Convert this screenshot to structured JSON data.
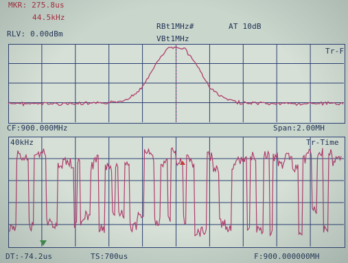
{
  "marker": {
    "time": "MKR: 275.8us",
    "freq": "44.5kHz"
  },
  "top_panel": {
    "ref_level": "RLV: 0.00dBm",
    "rbw": "RBt1MHz#",
    "vbw": "VBt1MHz",
    "attenuation": "AT 10dB",
    "trace_label": "Tr-F"
  },
  "mid_bar": {
    "center_freq": "CF:900.000MHz",
    "span": "Span:2.00MH"
  },
  "bottom_panel": {
    "scale_label": "40kHz",
    "trace_label": "Tr-Time"
  },
  "footer": {
    "delta_time": "DT:-74.2us",
    "sweep_time": "TS:700us",
    "frequency": "F:900.000000MH"
  },
  "colors": {
    "screen_bg": "#c9d6cc",
    "grid": "#2a3d73",
    "trace": "#b03c6c",
    "label_text": "#1d2e52",
    "marker_text": "#b0273a"
  }
}
